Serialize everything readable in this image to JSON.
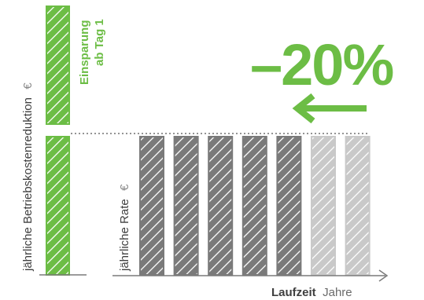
{
  "chart_data": [
    {
      "type": "bar",
      "ylabel": "jährliche Betriebskostenreduktion",
      "ylabel_unit": "€",
      "series": [
        {
          "name": "",
          "values": [
            1,
            1
          ],
          "color": "#6cbd45"
        }
      ],
      "annotation": [
        "Einsparung",
        "ab Tag 1"
      ],
      "reference_level": 1,
      "reference_line": "dotted"
    },
    {
      "type": "bar",
      "ylabel": "jährliche Rate",
      "ylabel_unit": "€",
      "xlabel": "Laufzeit",
      "xlabel_unit": "Jahre",
      "values": [
        1,
        1,
        1,
        1,
        1,
        1,
        1
      ],
      "bar_styles": [
        "dark",
        "dark",
        "dark",
        "dark",
        "dark",
        "light",
        "light"
      ],
      "colors": {
        "dark": "#7a7a7a",
        "light": "#c9c9c9"
      },
      "ylim": [
        0,
        1
      ],
      "callout": {
        "text": "–20%",
        "arrow": "left",
        "color": "#6cbd45"
      }
    }
  ]
}
